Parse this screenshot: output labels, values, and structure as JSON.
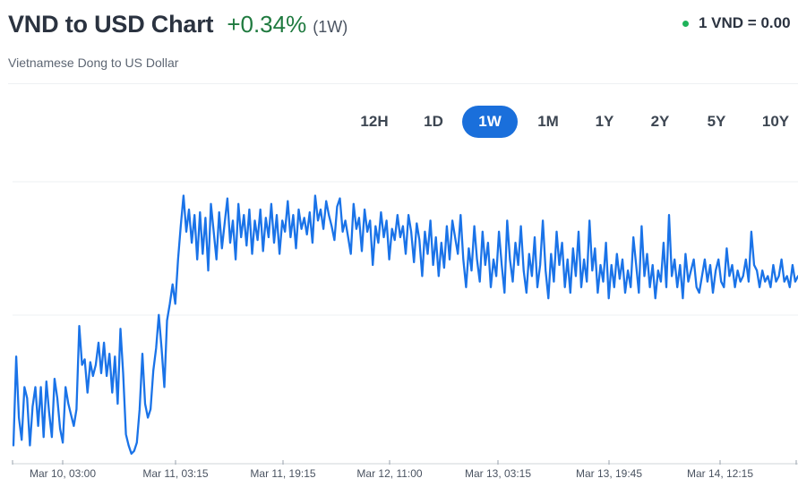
{
  "header": {
    "title": "VND to USD Chart",
    "change": "+0.34%",
    "period": "(1W)",
    "subtitle": "Vietnamese Dong to US Dollar",
    "rate": "1 VND = 0.00"
  },
  "range_tabs": [
    {
      "label": "12H",
      "active": false
    },
    {
      "label": "1D",
      "active": false
    },
    {
      "label": "1W",
      "active": true
    },
    {
      "label": "1M",
      "active": false
    },
    {
      "label": "1Y",
      "active": false
    },
    {
      "label": "2Y",
      "active": false
    },
    {
      "label": "5Y",
      "active": false
    },
    {
      "label": "10Y",
      "active": false
    }
  ],
  "colors": {
    "line": "#1a73e8",
    "active_tab": "#1a6fdb",
    "positive": "#1f7a3f",
    "live_dot": "#1fb35a"
  },
  "chart_data": {
    "type": "line",
    "x_tick_labels": [
      "Mar 10, 03:00",
      "Mar 11, 03:15",
      "Mar 11, 19:15",
      "Mar 12, 11:00",
      "Mar 13, 03:15",
      "Mar 13, 19:45",
      "Mar 14, 12:15"
    ],
    "grid": "horizontal",
    "y_tick_labels_visible": false,
    "series": [
      {
        "values": [
          0.05,
          0.37,
          0.15,
          0.07,
          0.26,
          0.22,
          0.05,
          0.19,
          0.26,
          0.12,
          0.26,
          0.08,
          0.28,
          0.17,
          0.08,
          0.29,
          0.22,
          0.11,
          0.06,
          0.26,
          0.2,
          0.16,
          0.12,
          0.18,
          0.48,
          0.34,
          0.36,
          0.24,
          0.35,
          0.3,
          0.34,
          0.42,
          0.31,
          0.42,
          0.3,
          0.38,
          0.24,
          0.37,
          0.2,
          0.47,
          0.31,
          0.09,
          0.05,
          0.02,
          0.03,
          0.06,
          0.18,
          0.38,
          0.2,
          0.15,
          0.18,
          0.32,
          0.4,
          0.52,
          0.4,
          0.26,
          0.5,
          0.56,
          0.63,
          0.56,
          0.72,
          0.84,
          0.95,
          0.82,
          0.9,
          0.78,
          0.88,
          0.72,
          0.89,
          0.74,
          0.87,
          0.68,
          0.92,
          0.82,
          0.72,
          0.89,
          0.76,
          0.85,
          0.94,
          0.78,
          0.86,
          0.72,
          0.92,
          0.8,
          0.88,
          0.77,
          0.9,
          0.74,
          0.86,
          0.79,
          0.9,
          0.75,
          0.87,
          0.8,
          0.92,
          0.78,
          0.88,
          0.74,
          0.86,
          0.82,
          0.93,
          0.8,
          0.88,
          0.76,
          0.9,
          0.83,
          0.87,
          0.81,
          0.89,
          0.78,
          0.95,
          0.86,
          0.9,
          0.83,
          0.93,
          0.88,
          0.84,
          0.79,
          0.91,
          0.94,
          0.82,
          0.86,
          0.8,
          0.74,
          0.92,
          0.83,
          0.87,
          0.75,
          0.9,
          0.82,
          0.86,
          0.7,
          0.84,
          0.78,
          0.89,
          0.8,
          0.86,
          0.72,
          0.83,
          0.79,
          0.88,
          0.8,
          0.84,
          0.74,
          0.88,
          0.82,
          0.71,
          0.85,
          0.79,
          0.66,
          0.82,
          0.74,
          0.86,
          0.7,
          0.8,
          0.66,
          0.78,
          0.69,
          0.84,
          0.72,
          0.86,
          0.8,
          0.74,
          0.88,
          0.72,
          0.62,
          0.76,
          0.68,
          0.84,
          0.72,
          0.64,
          0.82,
          0.7,
          0.78,
          0.62,
          0.72,
          0.66,
          0.82,
          0.7,
          0.6,
          0.86,
          0.72,
          0.64,
          0.78,
          0.7,
          0.84,
          0.68,
          0.6,
          0.74,
          0.66,
          0.8,
          0.62,
          0.7,
          0.86,
          0.68,
          0.58,
          0.74,
          0.64,
          0.82,
          0.7,
          0.78,
          0.62,
          0.72,
          0.6,
          0.76,
          0.66,
          0.82,
          0.62,
          0.72,
          0.64,
          0.86,
          0.68,
          0.76,
          0.6,
          0.7,
          0.64,
          0.78,
          0.58,
          0.7,
          0.62,
          0.74,
          0.65,
          0.72,
          0.6,
          0.68,
          0.62,
          0.8,
          0.7,
          0.6,
          0.84,
          0.66,
          0.74,
          0.62,
          0.7,
          0.58,
          0.68,
          0.64,
          0.78,
          0.62,
          0.88,
          0.66,
          0.72,
          0.62,
          0.7,
          0.58,
          0.74,
          0.64,
          0.68,
          0.72,
          0.62,
          0.6,
          0.66,
          0.72,
          0.64,
          0.7,
          0.6,
          0.68,
          0.72,
          0.64,
          0.62,
          0.76,
          0.66,
          0.7,
          0.62,
          0.68,
          0.64,
          0.66,
          0.72,
          0.64,
          0.82,
          0.7,
          0.68,
          0.62,
          0.68,
          0.64,
          0.66,
          0.62,
          0.7,
          0.64,
          0.66,
          0.72,
          0.64,
          0.66,
          0.62,
          0.7,
          0.64,
          0.66
        ]
      }
    ]
  }
}
